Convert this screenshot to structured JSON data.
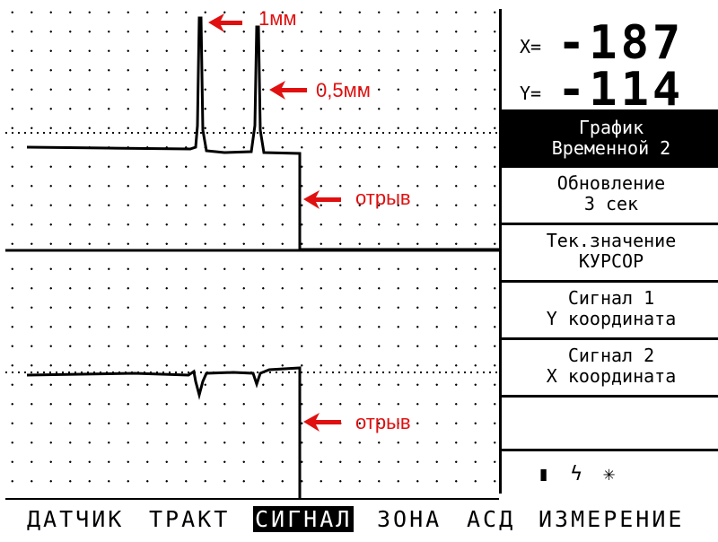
{
  "readouts": {
    "x": {
      "label": "X=",
      "value": "-187"
    },
    "y": {
      "label": "Y=",
      "value": "-114"
    }
  },
  "menu": [
    {
      "line1": "График",
      "line2": "Временной 2",
      "active": true
    },
    {
      "line1": "Обновление",
      "line2": "3 сек",
      "active": false
    },
    {
      "line1": "Тек.значение",
      "line2": "КУРСОР",
      "active": false
    },
    {
      "line1": "Сигнал 1",
      "line2": "Y координата",
      "active": false
    },
    {
      "line1": "Сигнал 2",
      "line2": "X координата",
      "active": false
    }
  ],
  "status_icons": {
    "battery": "▮",
    "power": "ϟ",
    "backlight": "✳"
  },
  "annotations": {
    "peak1": "1мм",
    "peak2": "0,5мм",
    "break_top": "отрыв",
    "break_bottom": "отрыв"
  },
  "colors": {
    "annotation": "#e01010",
    "screen": "#ffffff",
    "ink": "#000000"
  },
  "bottom_menu": [
    {
      "label": "ДАТЧИК",
      "active": false
    },
    {
      "label": "ТРАКТ",
      "active": false
    },
    {
      "label": "СИГНАЛ",
      "active": true
    },
    {
      "label": "ЗОНА",
      "active": false
    },
    {
      "label": "АСД",
      "active": false
    },
    {
      "label": "ИЗМЕРЕНИЕ",
      "active": false
    }
  ]
}
